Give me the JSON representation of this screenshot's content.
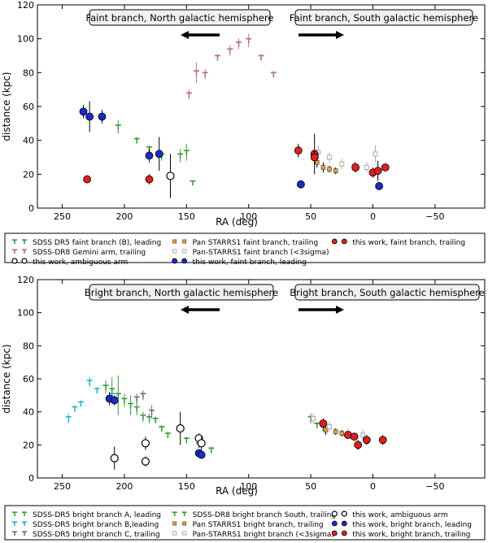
{
  "chart_data": [
    {
      "type": "scatter",
      "id": "top",
      "title": "",
      "xlabel": "RA (deg)",
      "ylabel": "distance (kpc)",
      "xlim": [
        270,
        -90
      ],
      "ylim": [
        0,
        120
      ],
      "xticks": [
        250,
        200,
        150,
        100,
        50,
        0,
        -50
      ],
      "xtick_labels": [
        "250",
        "200",
        "150",
        "100",
        "50",
        "0",
        "−50"
      ],
      "yticks": [
        0,
        20,
        40,
        60,
        80,
        100,
        120
      ],
      "annotations": [
        {
          "text": "Faint branch, North galactic hemisphere",
          "arrow": "left"
        },
        {
          "text": "Faint branch, South galactic hemisphere",
          "arrow": "right"
        }
      ],
      "series": [
        {
          "name": "SDSS DR5 faint branch (B), leading",
          "marker": "tri_down",
          "color": "#3a9a3a",
          "points": [
            [
              205,
              48,
              4
            ],
            [
              190,
              40,
              2
            ],
            [
              180,
              35,
              2
            ],
            [
              170,
              31,
              3
            ],
            [
              155,
              31,
              4
            ],
            [
              150,
              33,
              5
            ],
            [
              145,
              15,
              1
            ]
          ]
        },
        {
          "name": "SDSS-DR8 Gemini arm, trailing",
          "marker": "tri_down",
          "color": "#b07080",
          "points": [
            [
              148,
              67,
              3
            ],
            [
              142,
              80,
              6
            ],
            [
              135,
              79,
              3
            ],
            [
              125,
              89,
              2
            ],
            [
              115,
              93,
              3
            ],
            [
              108,
              97,
              3
            ],
            [
              100,
              99,
              4
            ],
            [
              90,
              89,
              2
            ],
            [
              80,
              79,
              2
            ]
          ]
        },
        {
          "name": "this work, ambiguous arm",
          "marker": "open_circle",
          "color": "#000000",
          "points": [
            [
              163,
              19,
              13
            ]
          ]
        },
        {
          "name": "Pan STARRS1 faint branch, trailing",
          "marker": "square",
          "color": "#e8a030",
          "points": [
            [
              45,
              27,
              3
            ],
            [
              40,
              24,
              3
            ],
            [
              35,
              23,
              2
            ],
            [
              30,
              22,
              2
            ]
          ]
        },
        {
          "name": "Pan-STARRS1 faint branch (<3sigma)",
          "marker": "open_square",
          "color": "#aaaaaa",
          "points": [
            [
              44,
              33,
              4
            ],
            [
              35,
              30,
              3
            ],
            [
              25,
              26,
              3
            ],
            [
              15,
              25,
              3
            ],
            [
              5,
              24,
              3
            ],
            [
              -2,
              32,
              5
            ]
          ]
        },
        {
          "name": "this work, faint branch, leading",
          "marker": "circle",
          "color": "#1a2acc",
          "points": [
            [
              233,
              57,
              4
            ],
            [
              228,
              54,
              9
            ],
            [
              218,
              54,
              4
            ],
            [
              180,
              31,
              4
            ],
            [
              172,
              32,
              10
            ],
            [
              58,
              14,
              1
            ],
            [
              -5,
              13,
              1
            ]
          ]
        },
        {
          "name": "this work, faint branch, trailing",
          "marker": "circle",
          "color": "#dd2020",
          "points": [
            [
              230,
              17,
              2
            ],
            [
              180,
              17,
              3
            ],
            [
              60,
              34,
              4
            ],
            [
              47,
              32,
              12
            ],
            [
              47,
              30,
              4
            ],
            [
              14,
              24,
              3
            ],
            [
              0,
              21,
              3
            ],
            [
              -4,
              22,
              6
            ],
            [
              -10,
              24,
              2
            ]
          ]
        }
      ],
      "legend": {
        "position": "bottom",
        "columns": 3,
        "entries": [
          "SDSS DR5 faint branch (B), leading",
          "SDSS-DR8 Gemini arm, trailing",
          "this work, ambiguous arm",
          "Pan STARRS1 faint branch, trailing",
          "Pan-STARRS1 faint branch (<3sigma)",
          "this work, faint branch, leading",
          "this work, faint branch, trailing"
        ]
      }
    },
    {
      "type": "scatter",
      "id": "bottom",
      "title": "",
      "xlabel": "RA (deg)",
      "ylabel": "distance (kpc)",
      "xlim": [
        270,
        -90
      ],
      "ylim": [
        0,
        120
      ],
      "xticks": [
        250,
        200,
        150,
        100,
        50,
        0,
        -50
      ],
      "xtick_labels": [
        "250",
        "200",
        "150",
        "100",
        "50",
        "0",
        "−50"
      ],
      "yticks": [
        0,
        20,
        40,
        60,
        80,
        100,
        120
      ],
      "annotations": [
        {
          "text": "Bright branch, North galactic hemisphere",
          "arrow": "left"
        },
        {
          "text": "Bright branch, South galactic hemisphere",
          "arrow": "right"
        }
      ],
      "series": [
        {
          "name": "SDSS-DR5 bright branch A, leading",
          "marker": "tri_down",
          "color": "#3a9a3a",
          "points": [
            [
              215,
              55,
              4
            ],
            [
              210,
              53,
              8
            ],
            [
              205,
              50,
              12
            ],
            [
              200,
              47,
              4
            ],
            [
              195,
              44,
              6
            ],
            [
              190,
              42,
              4
            ],
            [
              185,
              37,
              3
            ],
            [
              180,
              36,
              3
            ],
            [
              175,
              35,
              2
            ],
            [
              170,
              30,
              2
            ],
            [
              165,
              26,
              2
            ],
            [
              150,
              23,
              2
            ],
            [
              140,
              20,
              2
            ]
          ]
        },
        {
          "name": "SDSS-DR8 bright branch South, trailing",
          "marker": "tri_down",
          "color": "#3a9a3a",
          "points": [
            [
              50,
              36,
              3
            ],
            [
              45,
              32,
              2
            ],
            [
              40,
              30,
              2
            ],
            [
              130,
              17,
              2
            ]
          ]
        },
        {
          "name": "SDSS-DR5 bright branch B,leading",
          "marker": "tri_down",
          "color": "#20b8c8",
          "points": [
            [
              245,
              36,
              3
            ],
            [
              240,
              42,
              2
            ],
            [
              235,
              45,
              2
            ],
            [
              228,
              58,
              3
            ],
            [
              222,
              53,
              2
            ],
            [
              210,
              50,
              2
            ]
          ]
        },
        {
          "name": "SDSS-DR5 bright branch C, trailing",
          "marker": "tri_down",
          "color": "#707070",
          "points": [
            [
              190,
              48,
              3
            ],
            [
              185,
              50,
              3
            ],
            [
              178,
              40,
              4
            ]
          ]
        },
        {
          "name": "Pan STARRS1 bright branch, trailing",
          "marker": "square",
          "color": "#e8a030",
          "points": [
            [
              38,
              29,
              3
            ],
            [
              30,
              28,
              2
            ],
            [
              25,
              27,
              2
            ],
            [
              15,
              25,
              2
            ]
          ]
        },
        {
          "name": "Pan-STARRS1 bright branch (<3sigma)",
          "marker": "open_square",
          "color": "#aaaaaa",
          "points": [
            [
              48,
              36,
              3
            ],
            [
              35,
              31,
              3
            ],
            [
              20,
              27,
              3
            ],
            [
              8,
              26,
              3
            ]
          ]
        },
        {
          "name": "this work, ambiguous arm",
          "marker": "open_circle",
          "color": "#000000",
          "points": [
            [
              208,
              12,
              7
            ],
            [
              183,
              10,
              3
            ],
            [
              183,
              21,
              4
            ],
            [
              155,
              30,
              10
            ],
            [
              140,
              24,
              3
            ],
            [
              138,
              21,
              4
            ]
          ]
        },
        {
          "name": "this work, bright branch, leading",
          "marker": "circle",
          "color": "#1a2acc",
          "points": [
            [
              212,
              48,
              4
            ],
            [
              208,
              47,
              3
            ],
            [
              140,
              15,
              2
            ],
            [
              138,
              14,
              2
            ]
          ]
        },
        {
          "name": "this work, bright branch, trailing",
          "marker": "circle",
          "color": "#dd2020",
          "points": [
            [
              40,
              33,
              3
            ],
            [
              20,
              26,
              2
            ],
            [
              15,
              25,
              2
            ],
            [
              5,
              23,
              3
            ],
            [
              -8,
              23,
              3
            ],
            [
              12,
              20,
              3
            ]
          ]
        }
      ],
      "legend": {
        "position": "bottom",
        "columns": 3,
        "entries": [
          "SDSS-DR5 bright branch A, leading",
          "SDSS-DR5 bright branch B,leading",
          "SDSS-DR5 bright branch C, trailing",
          "SDSS-DR8 bright branch South, trailing",
          "Pan STARRS1 bright branch, trailing",
          "Pan-STARRS1 bright branch (<3sigma)",
          "this work, ambiguous arm",
          "this work, bright branch, leading",
          "this work, bright branch, trailing"
        ]
      }
    }
  ]
}
